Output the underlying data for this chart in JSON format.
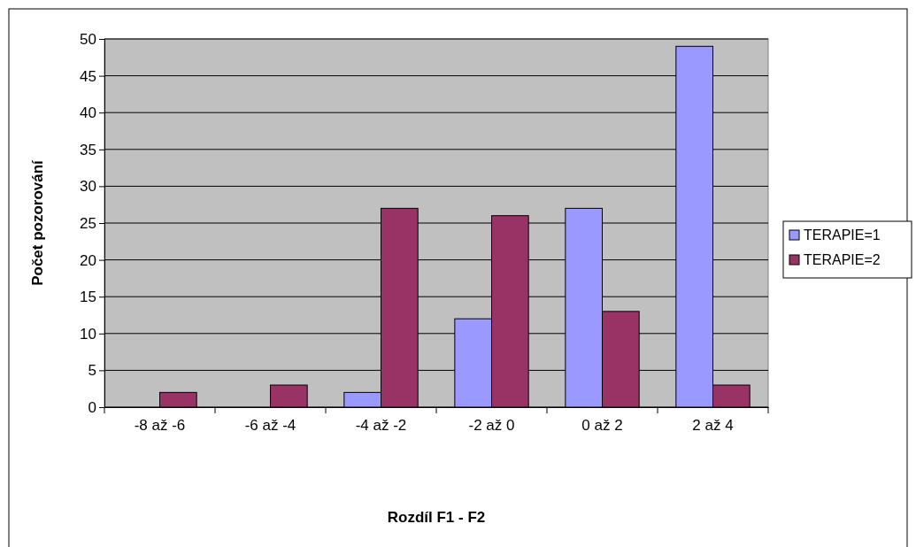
{
  "chart_data": {
    "type": "bar",
    "xlabel": "Rozdíl F1 - F2",
    "ylabel": "Počet pozorování",
    "categories": [
      "-8 až -6",
      "-6 až -4",
      "-4 až -2",
      "-2 až 0",
      "0 až 2",
      "2 až 4"
    ],
    "series": [
      {
        "name": "TERAPIE=1",
        "color": "#9999ff",
        "values": [
          0,
          0,
          2,
          12,
          27,
          49
        ]
      },
      {
        "name": "TERAPIE=2",
        "color": "#993366",
        "values": [
          2,
          3,
          27,
          26,
          13,
          3
        ]
      }
    ],
    "ylim": [
      0,
      50
    ],
    "yticks": [
      0,
      5,
      10,
      15,
      20,
      25,
      30,
      35,
      40,
      45,
      50
    ],
    "grid": "y",
    "legend": "right"
  }
}
